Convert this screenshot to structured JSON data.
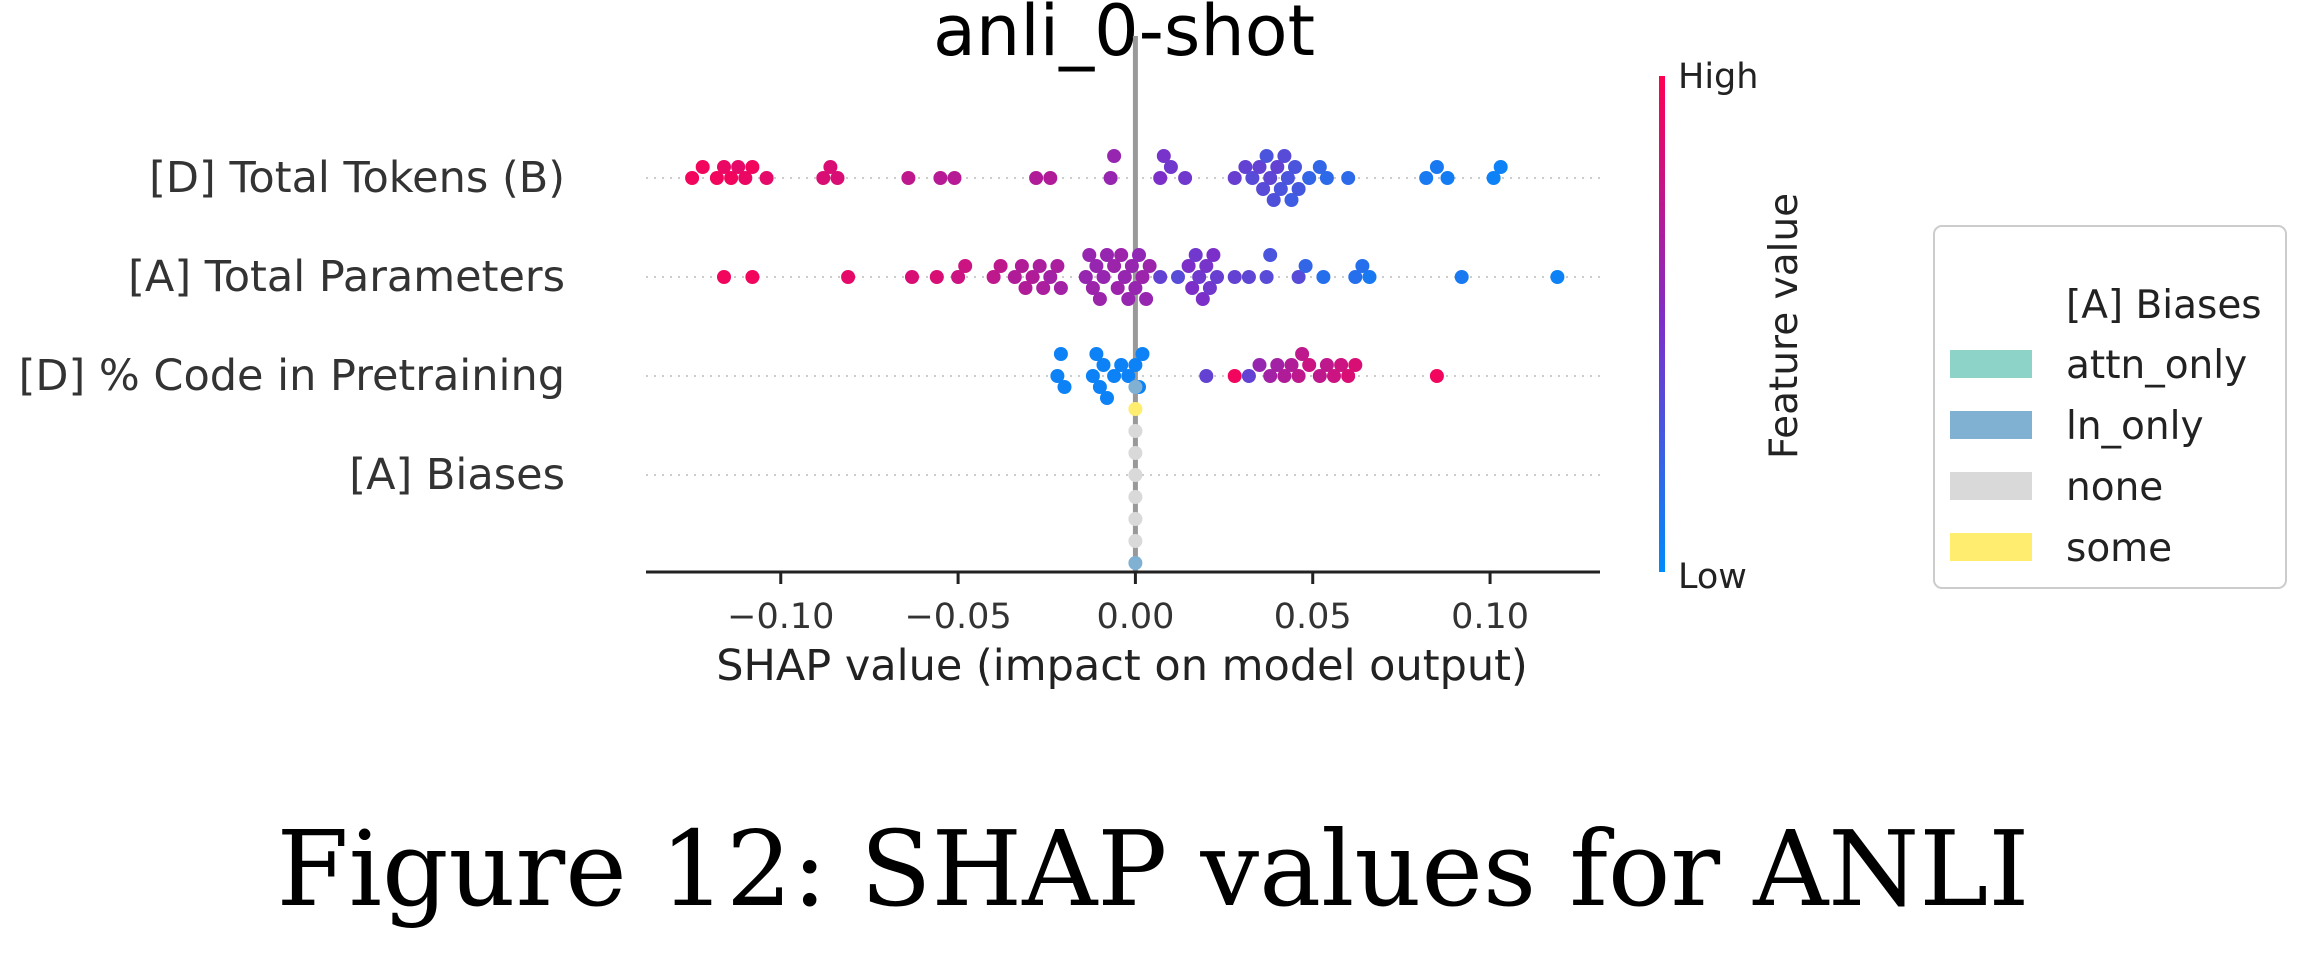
{
  "chart_data": {
    "type": "scatter",
    "subtype": "shap-beeswarm",
    "title": "anli_0-shot",
    "xlabel": "SHAP value (impact on model output)",
    "xlim": [
      -0.138,
      0.131
    ],
    "xticks": [
      -0.1,
      -0.05,
      0.0,
      0.05,
      0.1
    ],
    "xtick_labels": [
      "−0.10",
      "−0.05",
      "0.00",
      "0.05",
      "0.10"
    ],
    "features": [
      "[D] Total Tokens (B)",
      "[A] Total Parameters",
      "[D] % Code in Pretraining",
      "[A] Biases"
    ],
    "colorbar": {
      "label": "Feature value",
      "high_label": "High",
      "low_label": "Low",
      "high_color": "#ff0051",
      "low_color": "#008bfb"
    },
    "legend": {
      "title": "[A] Biases",
      "position": "right",
      "entries": [
        {
          "label": "attn_only",
          "color": "#8dd3c7"
        },
        {
          "label": "ln_only",
          "color": "#80b1d3"
        },
        {
          "label": "none",
          "color": "#d9d9d9"
        },
        {
          "label": "some",
          "color": "#ffed6f"
        }
      ]
    },
    "points": [
      {
        "feature": 0,
        "values": [
          [
            -0.125,
            0.95
          ],
          [
            -0.122,
            0.95
          ],
          [
            -0.118,
            0.95
          ],
          [
            -0.116,
            0.92
          ],
          [
            -0.114,
            0.95
          ],
          [
            -0.112,
            0.9
          ],
          [
            -0.11,
            0.92
          ],
          [
            -0.108,
            0.95
          ],
          [
            -0.104,
            0.9
          ],
          [
            -0.088,
            0.85
          ],
          [
            -0.086,
            0.85
          ],
          [
            -0.084,
            0.85
          ],
          [
            -0.064,
            0.75
          ],
          [
            -0.055,
            0.72
          ],
          [
            -0.051,
            0.72
          ],
          [
            -0.028,
            0.7
          ],
          [
            -0.024,
            0.7
          ],
          [
            -0.007,
            0.6
          ],
          [
            -0.006,
            0.6
          ],
          [
            0.007,
            0.5
          ],
          [
            0.008,
            0.48
          ],
          [
            0.01,
            0.45
          ],
          [
            0.014,
            0.45
          ],
          [
            0.028,
            0.42
          ],
          [
            0.031,
            0.4
          ],
          [
            0.033,
            0.35
          ],
          [
            0.035,
            0.4
          ],
          [
            0.036,
            0.35
          ],
          [
            0.037,
            0.3
          ],
          [
            0.038,
            0.38
          ],
          [
            0.039,
            0.32
          ],
          [
            0.04,
            0.4
          ],
          [
            0.041,
            0.3
          ],
          [
            0.042,
            0.35
          ],
          [
            0.043,
            0.3
          ],
          [
            0.044,
            0.25
          ],
          [
            0.045,
            0.3
          ],
          [
            0.046,
            0.28
          ],
          [
            0.049,
            0.2
          ],
          [
            0.052,
            0.2
          ],
          [
            0.054,
            0.18
          ],
          [
            0.06,
            0.18
          ],
          [
            0.082,
            0.1
          ],
          [
            0.085,
            0.1
          ],
          [
            0.088,
            0.08
          ],
          [
            0.101,
            0.05
          ],
          [
            0.103,
            0.05
          ]
        ]
      },
      {
        "feature": 1,
        "values": [
          [
            -0.116,
            0.95
          ],
          [
            -0.108,
            0.95
          ],
          [
            -0.081,
            0.9
          ],
          [
            -0.063,
            0.85
          ],
          [
            -0.056,
            0.85
          ],
          [
            -0.05,
            0.8
          ],
          [
            -0.048,
            0.8
          ],
          [
            -0.04,
            0.75
          ],
          [
            -0.038,
            0.75
          ],
          [
            -0.034,
            0.7
          ],
          [
            -0.032,
            0.7
          ],
          [
            -0.031,
            0.7
          ],
          [
            -0.029,
            0.7
          ],
          [
            -0.027,
            0.68
          ],
          [
            -0.026,
            0.68
          ],
          [
            -0.024,
            0.65
          ],
          [
            -0.022,
            0.68
          ],
          [
            -0.021,
            0.65
          ],
          [
            -0.014,
            0.6
          ],
          [
            -0.013,
            0.6
          ],
          [
            -0.012,
            0.62
          ],
          [
            -0.011,
            0.6
          ],
          [
            -0.01,
            0.62
          ],
          [
            -0.009,
            0.6
          ],
          [
            -0.008,
            0.6
          ],
          [
            -0.006,
            0.62
          ],
          [
            -0.005,
            0.62
          ],
          [
            -0.004,
            0.62
          ],
          [
            -0.003,
            0.6
          ],
          [
            -0.002,
            0.6
          ],
          [
            -0.001,
            0.6
          ],
          [
            0.0,
            0.6
          ],
          [
            0.001,
            0.58
          ],
          [
            0.002,
            0.62
          ],
          [
            0.003,
            0.6
          ],
          [
            0.004,
            0.62
          ],
          [
            0.007,
            0.4
          ],
          [
            0.012,
            0.35
          ],
          [
            0.015,
            0.5
          ],
          [
            0.016,
            0.5
          ],
          [
            0.017,
            0.45
          ],
          [
            0.018,
            0.45
          ],
          [
            0.019,
            0.5
          ],
          [
            0.02,
            0.48
          ],
          [
            0.021,
            0.45
          ],
          [
            0.022,
            0.5
          ],
          [
            0.023,
            0.42
          ],
          [
            0.028,
            0.4
          ],
          [
            0.032,
            0.38
          ],
          [
            0.037,
            0.35
          ],
          [
            0.038,
            0.3
          ],
          [
            0.046,
            0.35
          ],
          [
            0.048,
            0.2
          ],
          [
            0.053,
            0.15
          ],
          [
            0.062,
            0.15
          ],
          [
            0.064,
            0.15
          ],
          [
            0.066,
            0.1
          ],
          [
            0.092,
            0.1
          ],
          [
            0.119,
            0.05
          ]
        ]
      },
      {
        "feature": 2,
        "values": [
          [
            -0.022,
            0.05
          ],
          [
            -0.021,
            0.05
          ],
          [
            -0.02,
            0.05
          ],
          [
            -0.012,
            0.05
          ],
          [
            -0.011,
            0.05
          ],
          [
            -0.01,
            0.05
          ],
          [
            -0.009,
            0.05
          ],
          [
            -0.008,
            0.05
          ],
          [
            -0.006,
            0.05
          ],
          [
            -0.004,
            0.05
          ],
          [
            -0.002,
            0.05
          ],
          [
            0.0,
            0.05
          ],
          [
            0.001,
            0.05
          ],
          [
            0.002,
            0.05
          ],
          [
            0.02,
            0.4
          ],
          [
            0.028,
            0.95
          ],
          [
            0.032,
            0.4
          ],
          [
            0.035,
            0.6
          ],
          [
            0.038,
            0.65
          ],
          [
            0.04,
            0.65
          ],
          [
            0.042,
            0.7
          ],
          [
            0.044,
            0.7
          ],
          [
            0.046,
            0.75
          ],
          [
            0.047,
            0.75
          ],
          [
            0.049,
            0.8
          ],
          [
            0.052,
            0.75
          ],
          [
            0.054,
            0.75
          ],
          [
            0.056,
            0.8
          ],
          [
            0.058,
            0.8
          ],
          [
            0.06,
            0.85
          ],
          [
            0.062,
            0.85
          ],
          [
            0.085,
            0.95
          ]
        ]
      },
      {
        "feature": 3,
        "values": [
          [
            0.0,
            "none"
          ],
          [
            0.0,
            "none"
          ],
          [
            0.0,
            "none"
          ],
          [
            0.0,
            "none"
          ],
          [
            0.0,
            "none"
          ],
          [
            0.0,
            "some"
          ],
          [
            0.0,
            "none"
          ],
          [
            0.0,
            "ln_only"
          ],
          [
            0.0,
            "ln_only"
          ]
        ]
      }
    ]
  },
  "caption": "Figure 12: SHAP values for ANLI"
}
